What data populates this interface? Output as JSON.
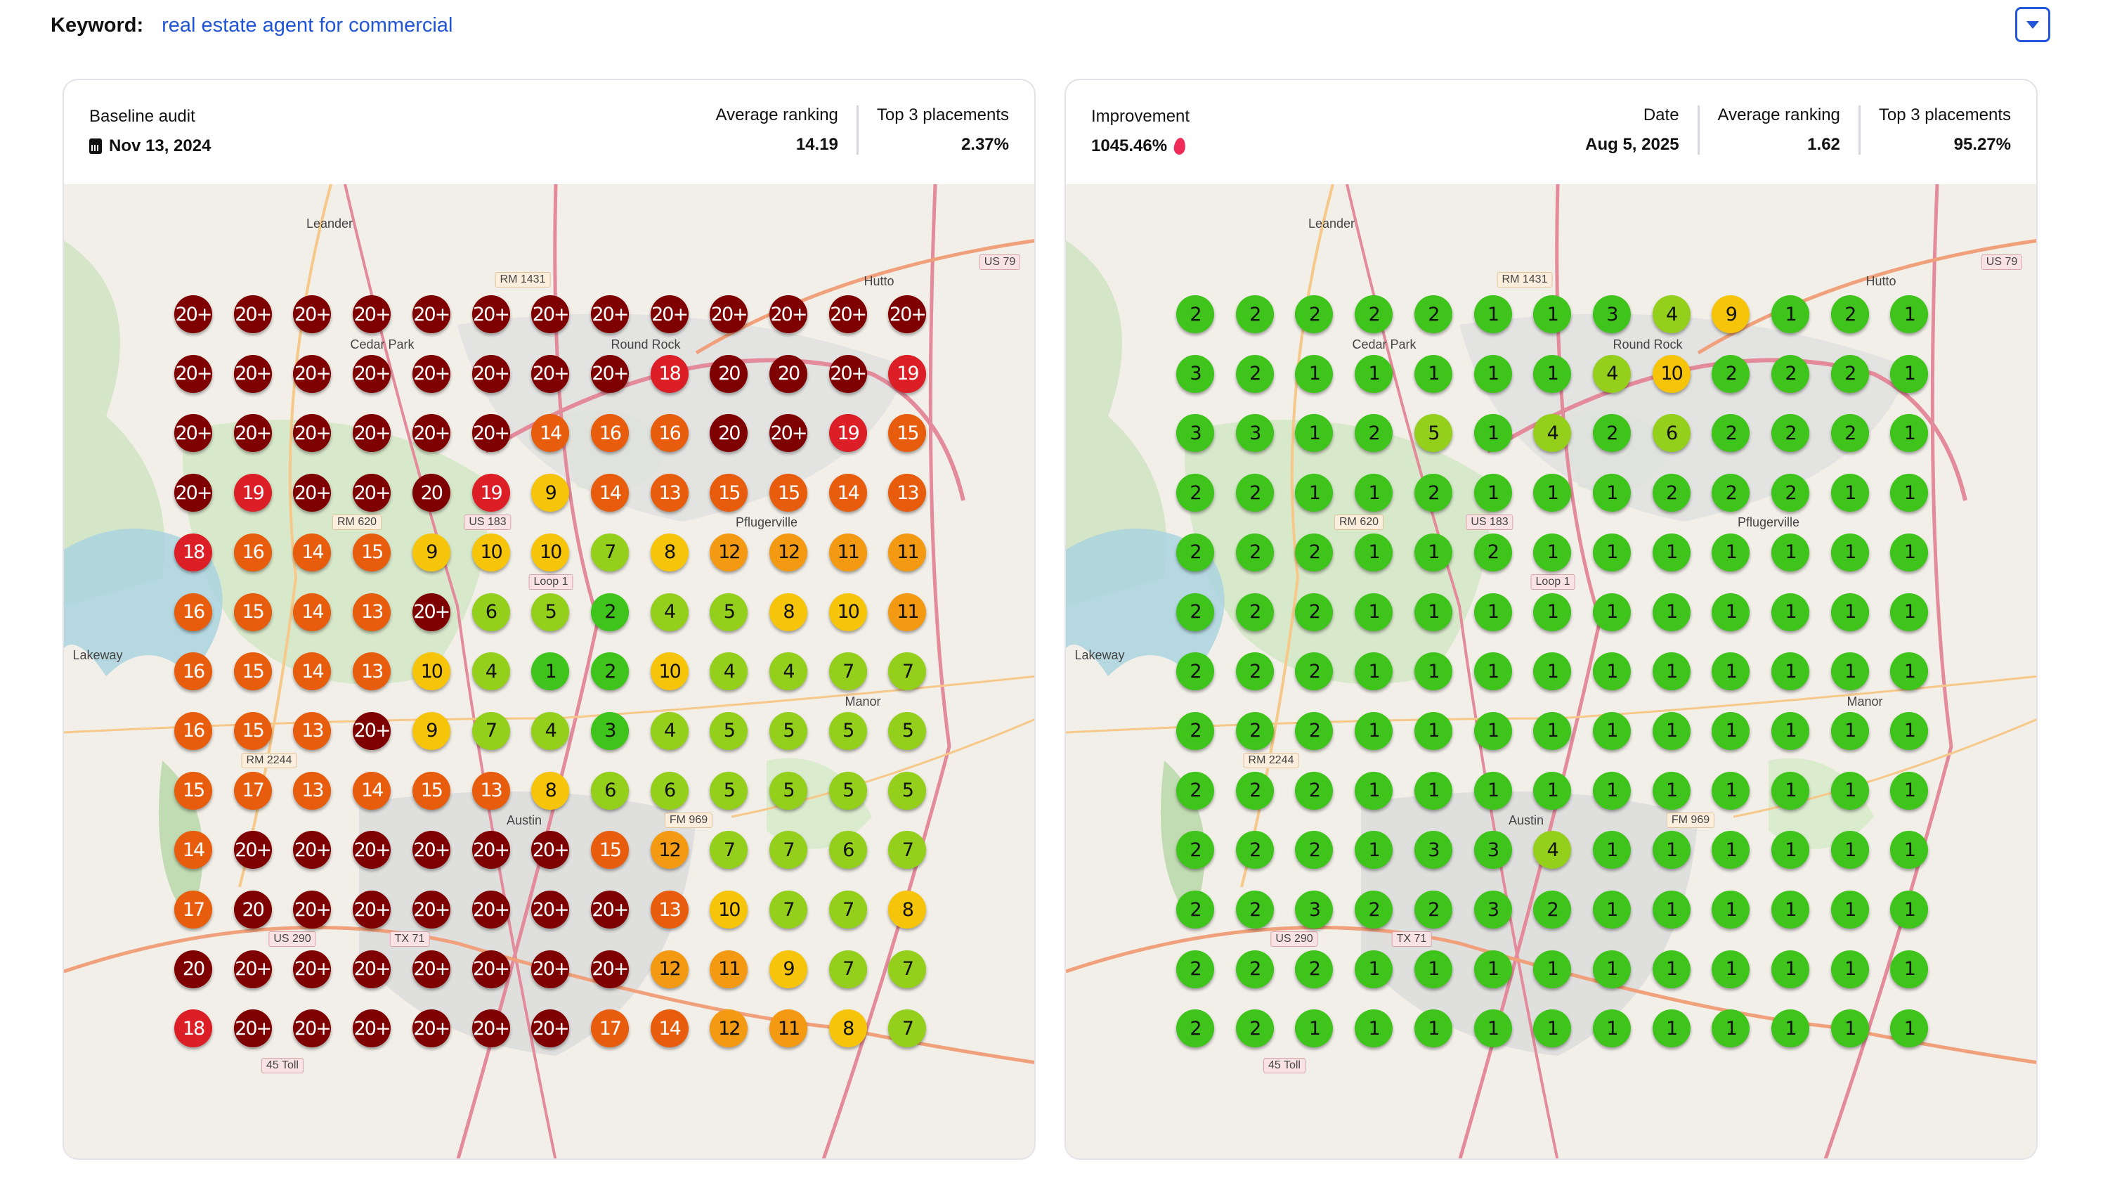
{
  "keyword": {
    "label": "Keyword:",
    "value": "real estate agent for commercial"
  },
  "dropdown": {
    "icon": "caret-down-icon",
    "color": "#2456d8"
  },
  "baseline": {
    "title": "Baseline audit",
    "date": "Nov 13, 2024",
    "date_icon": "calendar-icon",
    "average_ranking_label": "Average ranking",
    "average_ranking": "14.19",
    "top3_label": "Top 3 placements",
    "top3": "2.37%",
    "grid": [
      [
        "20+",
        "20+",
        "20+",
        "20+",
        "20+",
        "20+",
        "20+",
        "20+",
        "20+",
        "20+",
        "20+",
        "20+",
        "20+"
      ],
      [
        "20+",
        "20+",
        "20+",
        "20+",
        "20+",
        "20+",
        "20+",
        "20+",
        "18",
        "20",
        "20",
        "20+",
        "19"
      ],
      [
        "20+",
        "20+",
        "20+",
        "20+",
        "20+",
        "20+",
        "14",
        "16",
        "16",
        "20",
        "20+",
        "19",
        "15"
      ],
      [
        "20+",
        "19",
        "20+",
        "20+",
        "20",
        "19",
        "9",
        "14",
        "13",
        "15",
        "15",
        "14",
        "13"
      ],
      [
        "18",
        "16",
        "14",
        "15",
        "9",
        "10",
        "10",
        "7",
        "8",
        "12",
        "12",
        "11",
        "11"
      ],
      [
        "16",
        "15",
        "14",
        "13",
        "20+",
        "6",
        "5",
        "2",
        "4",
        "5",
        "8",
        "10",
        "11"
      ],
      [
        "16",
        "15",
        "14",
        "13",
        "10",
        "4",
        "1",
        "2",
        "10",
        "4",
        "4",
        "7",
        "7"
      ],
      [
        "16",
        "15",
        "13",
        "20+",
        "9",
        "7",
        "4",
        "3",
        "4",
        "5",
        "5",
        "5",
        "5"
      ],
      [
        "15",
        "17",
        "13",
        "14",
        "15",
        "13",
        "8",
        "6",
        "6",
        "5",
        "5",
        "5",
        "5"
      ],
      [
        "14",
        "20+",
        "20+",
        "20+",
        "20+",
        "20+",
        "20+",
        "15",
        "12",
        "7",
        "7",
        "6",
        "7"
      ],
      [
        "17",
        "20",
        "20+",
        "20+",
        "20+",
        "20+",
        "20+",
        "20+",
        "13",
        "10",
        "7",
        "7",
        "8"
      ],
      [
        "20",
        "20+",
        "20+",
        "20+",
        "20+",
        "20+",
        "20+",
        "20+",
        "12",
        "11",
        "9",
        "7",
        "7"
      ],
      [
        "18",
        "20+",
        "20+",
        "20+",
        "20+",
        "20+",
        "20+",
        "17",
        "14",
        "12",
        "11",
        "8",
        "7"
      ]
    ]
  },
  "current": {
    "improvement_label": "Improvement",
    "improvement": "1045.46%",
    "improvement_icon": "flame-icon",
    "date_label": "Date",
    "date": "Aug 5, 2025",
    "average_ranking_label": "Average ranking",
    "average_ranking": "1.62",
    "top3_label": "Top 3 placements",
    "top3": "95.27%",
    "grid": [
      [
        "2",
        "2",
        "2",
        "2",
        "2",
        "1",
        "1",
        "3",
        "4",
        "9",
        "1",
        "2",
        "1"
      ],
      [
        "3",
        "2",
        "1",
        "1",
        "1",
        "1",
        "1",
        "4",
        "10",
        "2",
        "2",
        "2",
        "1"
      ],
      [
        "3",
        "3",
        "1",
        "2",
        "5",
        "1",
        "4",
        "2",
        "6",
        "2",
        "2",
        "2",
        "1"
      ],
      [
        "2",
        "2",
        "1",
        "1",
        "2",
        "1",
        "1",
        "1",
        "2",
        "2",
        "2",
        "1",
        "1"
      ],
      [
        "2",
        "2",
        "2",
        "1",
        "1",
        "2",
        "1",
        "1",
        "1",
        "1",
        "1",
        "1",
        "1"
      ],
      [
        "2",
        "2",
        "2",
        "1",
        "1",
        "1",
        "1",
        "1",
        "1",
        "1",
        "1",
        "1",
        "1"
      ],
      [
        "2",
        "2",
        "2",
        "1",
        "1",
        "1",
        "1",
        "1",
        "1",
        "1",
        "1",
        "1",
        "1"
      ],
      [
        "2",
        "2",
        "2",
        "1",
        "1",
        "1",
        "1",
        "1",
        "1",
        "1",
        "1",
        "1",
        "1"
      ],
      [
        "2",
        "2",
        "2",
        "1",
        "1",
        "1",
        "1",
        "1",
        "1",
        "1",
        "1",
        "1",
        "1"
      ],
      [
        "2",
        "2",
        "2",
        "1",
        "3",
        "3",
        "4",
        "1",
        "1",
        "1",
        "1",
        "1",
        "1"
      ],
      [
        "2",
        "2",
        "3",
        "2",
        "2",
        "3",
        "2",
        "1",
        "1",
        "1",
        "1",
        "1",
        "1"
      ],
      [
        "2",
        "2",
        "2",
        "1",
        "1",
        "1",
        "1",
        "1",
        "1",
        "1",
        "1",
        "1",
        "1"
      ],
      [
        "2",
        "2",
        "1",
        "1",
        "1",
        "1",
        "1",
        "1",
        "1",
        "1",
        "1",
        "1",
        "1"
      ]
    ]
  },
  "rank_colors": {
    "1-3": "#3fc41c",
    "4-7": "#94cf1c",
    "8-10": "#f6c409",
    "11-12": "#f39a12",
    "13-17": "#e85d0d",
    "18-19": "#dc1f26",
    "20+": "#7e0000"
  },
  "map": {
    "places": [
      "Leander",
      "Cedar Park",
      "Round Rock",
      "Hutto",
      "Lakeway",
      "Manor",
      "Austin",
      "Pflugerville"
    ],
    "shields": [
      "RM 1431",
      "US 79",
      "RM 620",
      "US 183",
      "Loop 1",
      "RM 2244",
      "FM 969",
      "US 290",
      "TX 71",
      "45 Toll"
    ]
  }
}
